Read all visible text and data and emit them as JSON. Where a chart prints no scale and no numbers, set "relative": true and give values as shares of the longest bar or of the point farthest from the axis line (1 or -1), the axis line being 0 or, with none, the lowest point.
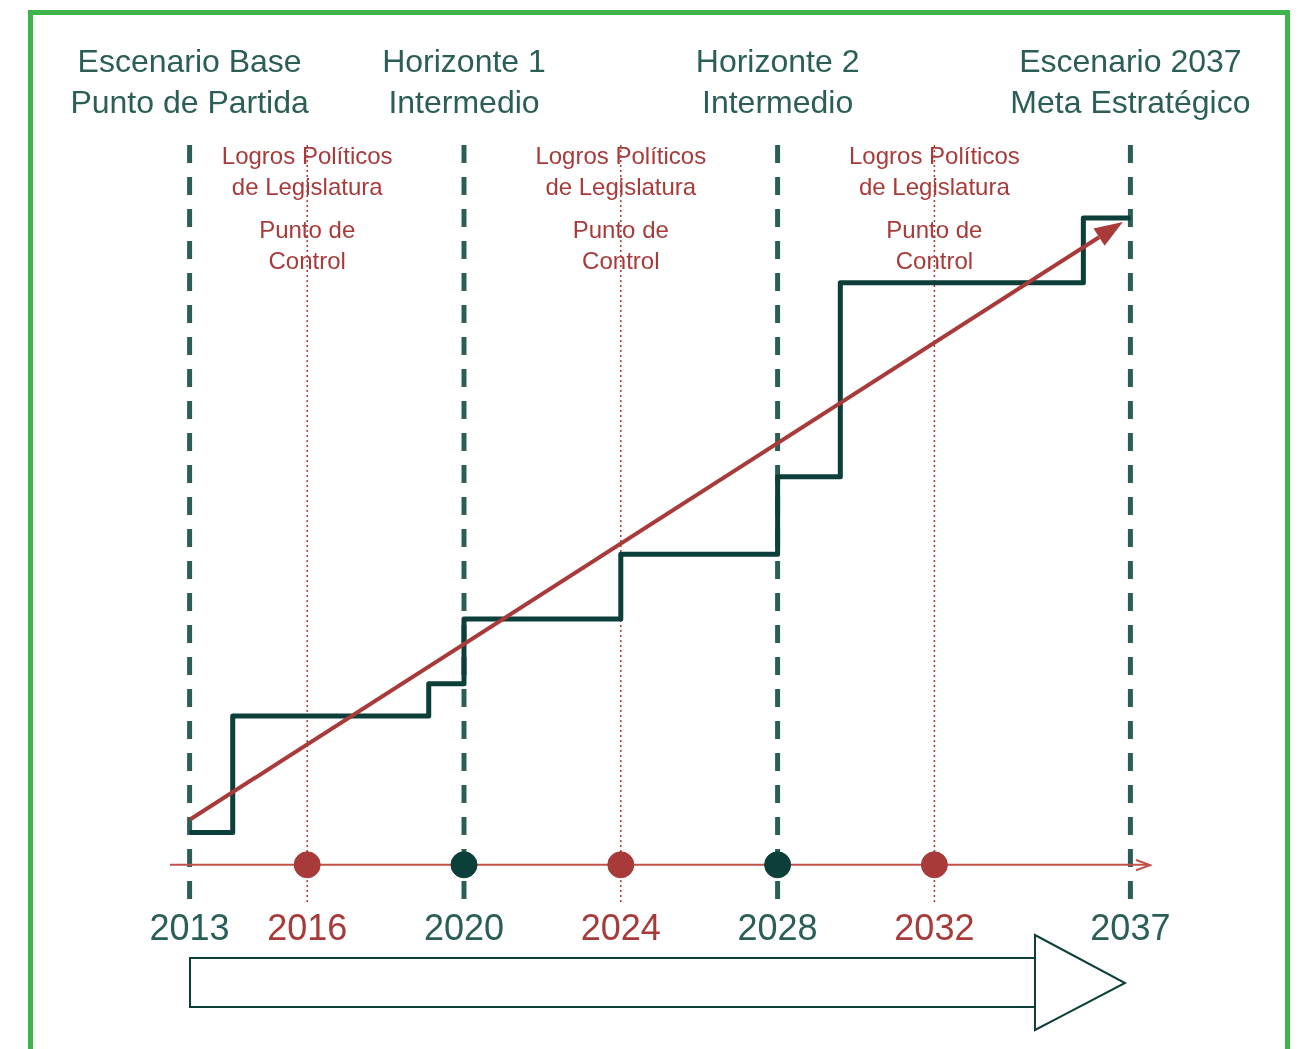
{
  "chart_data": {
    "type": "step",
    "relative": true,
    "xlim": [
      2012.5,
      2037.5
    ],
    "xticks": [
      2013,
      2016,
      2020,
      2024,
      2028,
      2032,
      2037
    ],
    "grid": false,
    "legend": false,
    "series": [
      {
        "type": "step",
        "color": "#0d3f3a",
        "x": [
          2013,
          2014.1,
          2019.1,
          2020,
          2024,
          2028,
          2029.6,
          2035.8,
          2037
        ],
        "values": [
          0.05,
          0.23,
          0.28,
          0.38,
          0.48,
          0.6,
          0.9,
          1.0,
          1.0
        ]
      },
      {
        "type": "scatter",
        "color": "#a83a3a",
        "x": [
          2016,
          2024,
          2032
        ],
        "values": [
          0,
          0,
          0
        ]
      },
      {
        "type": "scatter",
        "color": "#0d3f3a",
        "x": [
          2020,
          2028
        ],
        "values": [
          0,
          0
        ]
      }
    ],
    "ref_lines": [
      {
        "axis": "x",
        "value": 2013,
        "label": "Escenario Base\nPunto de Partida",
        "color": "#2a5e56",
        "line_style": "dashed"
      },
      {
        "axis": "x",
        "value": 2020,
        "label": "Horizonte 1\nIntermedio",
        "color": "#2a5e56",
        "line_style": "dashed"
      },
      {
        "axis": "x",
        "value": 2028,
        "label": "Horizonte 2\nIntermedio",
        "color": "#2a5e56",
        "line_style": "dashed"
      },
      {
        "axis": "x",
        "value": 2037,
        "label": "Escenario 2037\nMeta Estratégico",
        "color": "#2a5e56",
        "line_style": "dashed"
      },
      {
        "axis": "x",
        "value": 2016,
        "label": "Logros Políticos\nde Legislatura\n\nPunto de\nControl",
        "color": "#a83a3a",
        "line_style": "dotted"
      },
      {
        "axis": "x",
        "value": 2024,
        "label": "Logros Políticos\nde Legislatura\n\nPunto de\nControl",
        "color": "#a83a3a",
        "line_style": "dotted"
      },
      {
        "axis": "x",
        "value": 2032,
        "label": "Logros Políticos\nde Legislatura\n\nPunto de\nControl",
        "color": "#a83a3a",
        "line_style": "dotted"
      }
    ]
  }
}
